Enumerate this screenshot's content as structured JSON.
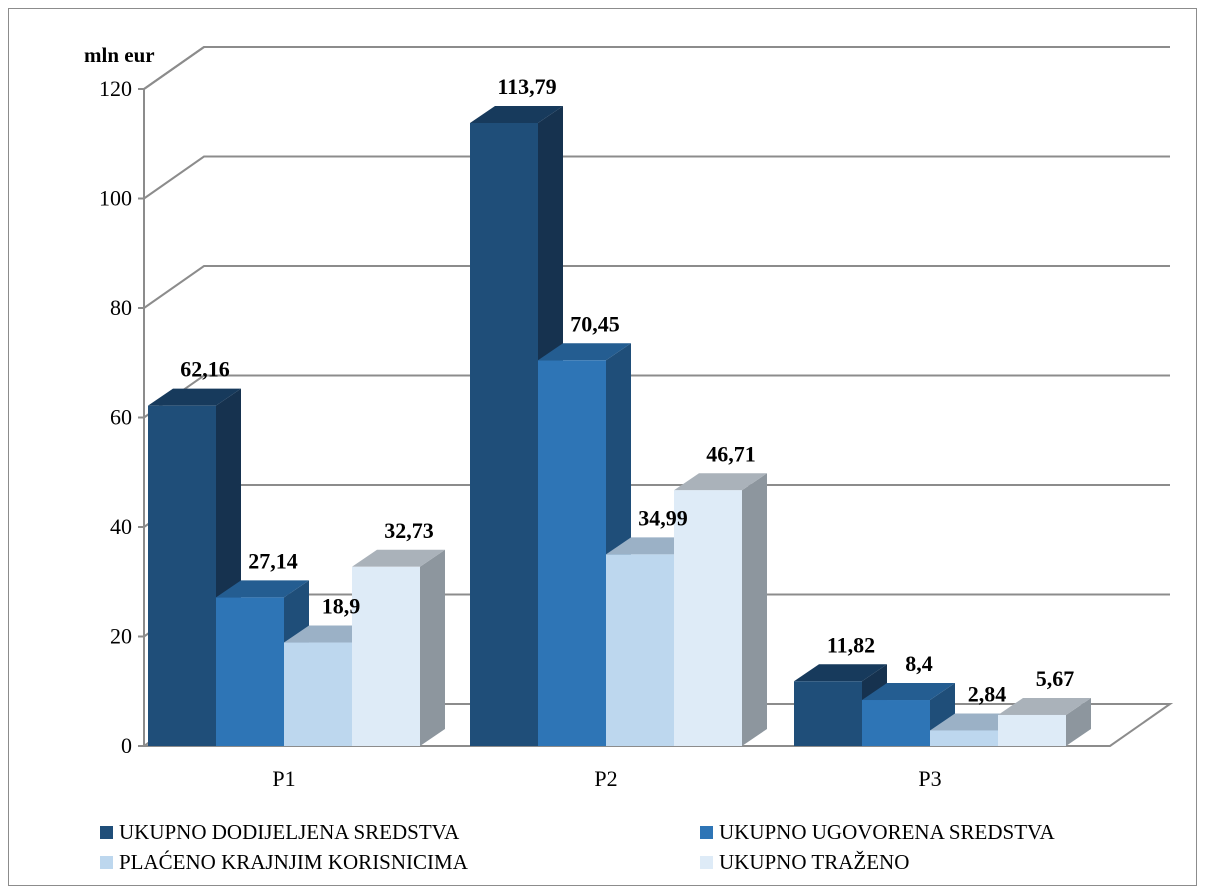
{
  "chart_data": {
    "type": "bar",
    "categories": [
      "P1",
      "P2",
      "P3"
    ],
    "series": [
      {
        "name": "UKUPNO DODIJELJENA SREDSTVA",
        "values": [
          62.16,
          113.79,
          11.82
        ],
        "labels": [
          "62,16",
          "113,79",
          "11,82"
        ],
        "color": "#1f4e79"
      },
      {
        "name": "UKUPNO UGOVORENA SREDSTVA",
        "values": [
          27.14,
          70.45,
          8.4
        ],
        "labels": [
          "27,14",
          "70,45",
          "8,4"
        ],
        "color": "#2e75b6"
      },
      {
        "name": "PLAĆENO KRAJNJIM KORISNICIMA",
        "values": [
          18.9,
          34.99,
          2.84
        ],
        "labels": [
          "18,9",
          "34,99",
          "2,84"
        ],
        "color": "#bdd7ee"
      },
      {
        "name": "UKUPNO TRAŽENO",
        "values": [
          32.73,
          46.71,
          5.67
        ],
        "labels": [
          "32,73",
          "46,71",
          "5,67"
        ],
        "color": "#deebf7"
      }
    ],
    "ylabel": "mln eur",
    "ylim": [
      0,
      120
    ],
    "yticks": [
      0,
      20,
      40,
      60,
      80,
      100,
      120
    ],
    "grid": true,
    "legend_position": "bottom",
    "style": "3d-clustered-column"
  }
}
